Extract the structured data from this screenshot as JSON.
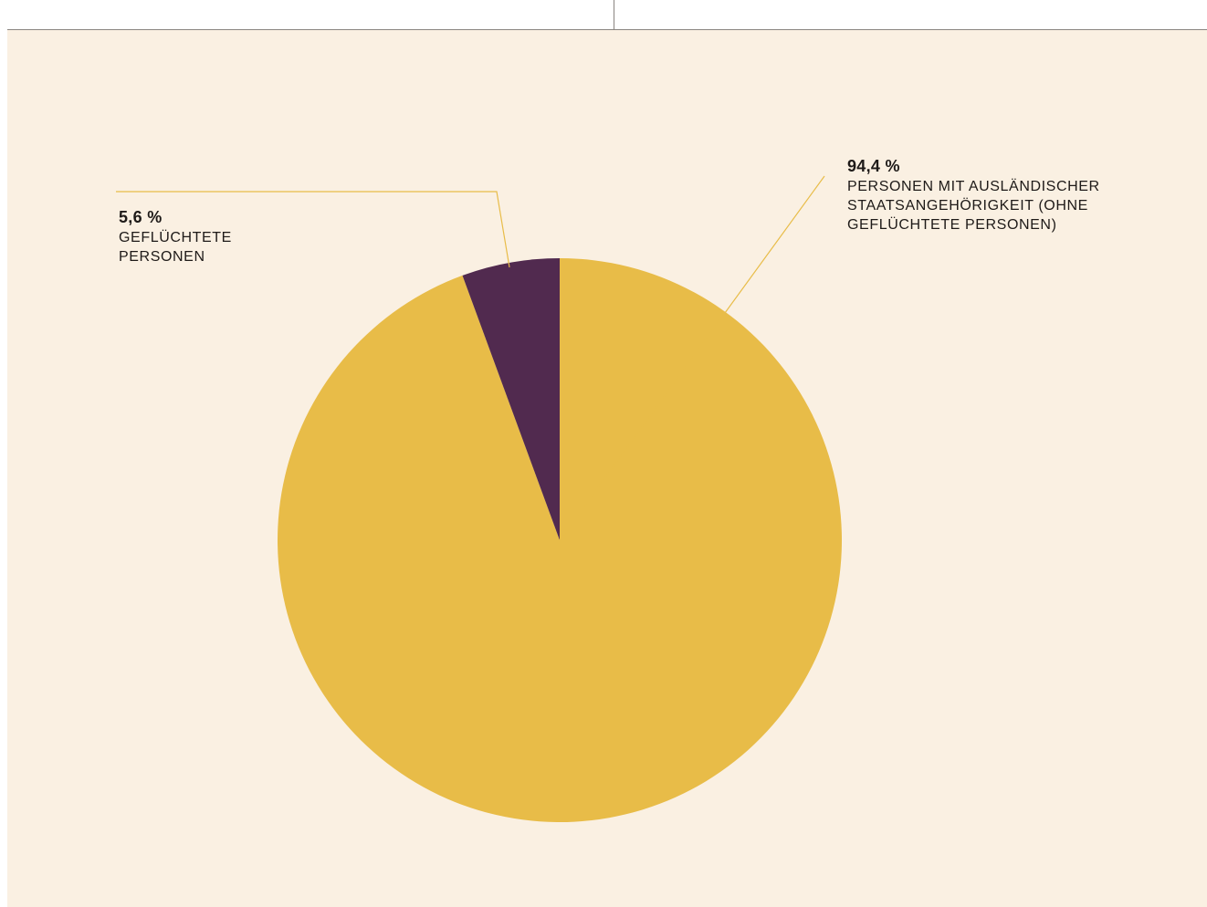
{
  "chart_data": {
    "type": "pie",
    "start_angle_deg": 0,
    "direction": "clockwise",
    "slices": [
      {
        "name": "PERSONEN MIT AUSLÄNDISCHER STAATSANGEHÖRIGKEIT (OHNE GEFLÜCHTETE PERSONEN)",
        "value": 94.4,
        "label": "94,4 %",
        "lines": [
          "PERSONEN MIT AUSLÄNDISCHER",
          "STAATSANGEHÖRIGKEIT (OHNE",
          "GEFLÜCHTETE PERSONEN)"
        ],
        "color": "#e8bc48"
      },
      {
        "name": "GEFLÜCHTETE PERSONEN",
        "value": 5.6,
        "label": "5,6 %",
        "lines": [
          "GEFLÜCHTETE",
          "PERSONEN"
        ],
        "color": "#512a4f"
      }
    ]
  },
  "colors": {
    "background": "#faf0e2",
    "leader_line": "#e8bc48",
    "text": "#1e1a18",
    "rule": "#8a8580"
  }
}
